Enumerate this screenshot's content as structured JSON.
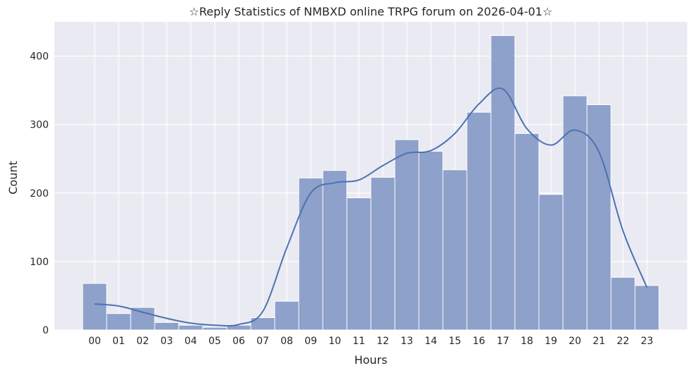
{
  "chart_data": {
    "type": "bar",
    "title": "☆Reply Statistics of NMBXD online TRPG forum on 2026-04-01☆",
    "xlabel": "Hours",
    "ylabel": "Count",
    "categories": [
      "00",
      "01",
      "02",
      "03",
      "04",
      "05",
      "06",
      "07",
      "08",
      "09",
      "10",
      "11",
      "12",
      "13",
      "14",
      "15",
      "16",
      "17",
      "18",
      "19",
      "20",
      "21",
      "22",
      "23"
    ],
    "values": [
      68,
      24,
      33,
      11,
      7,
      4,
      7,
      18,
      42,
      222,
      233,
      193,
      223,
      278,
      261,
      234,
      318,
      430,
      287,
      198,
      342,
      329,
      77,
      65
    ],
    "kde": [
      38,
      35,
      26,
      17,
      10,
      7,
      8,
      27,
      120,
      200,
      215,
      219,
      240,
      258,
      262,
      287,
      330,
      352,
      294,
      270,
      292,
      260,
      145,
      62
    ],
    "ylim": [
      0,
      450
    ],
    "yticks": [
      0,
      100,
      200,
      300,
      400
    ],
    "grid": true,
    "colors": {
      "background": "#eaeaf2",
      "grid": "#ffffff",
      "bar_fill": "#8ea1cb",
      "bar_edge": "#ffffff",
      "kde_line": "#4c72b0"
    }
  }
}
